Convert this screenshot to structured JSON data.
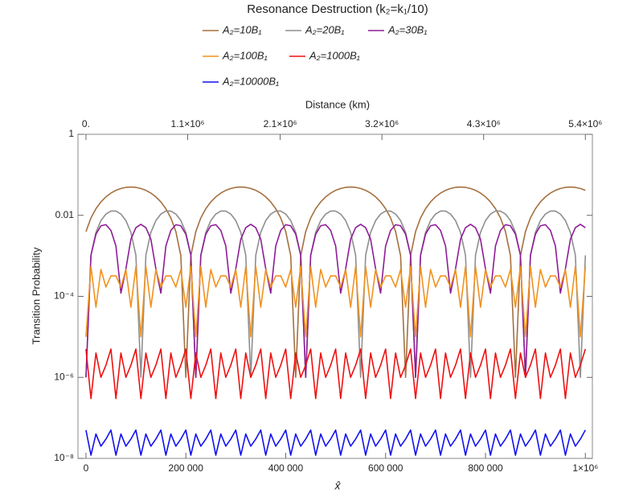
{
  "chart_data": {
    "type": "line",
    "title": "Resonance Destruction (k₂=k₁/10)",
    "xlabel": "x̂",
    "x2label": "Distance (km)",
    "ylabel": "Transition Probability",
    "xlim": [
      -16000,
      1014000
    ],
    "xticks": [
      0,
      {
        "value": 200000,
        "label": "200 000"
      },
      {
        "value": 400000,
        "label": "400 000"
      },
      {
        "value": 600000,
        "label": "600 000"
      },
      {
        "value": 800000,
        "label": "800 000"
      },
      {
        "value": 1000000,
        "label": "1×10⁶"
      }
    ],
    "x2lim": [
      -86400,
      5475600
    ],
    "x2ticks": [
      {
        "value": 0,
        "label": "0."
      },
      {
        "value": 1100000,
        "label": "1.1×10⁶"
      },
      {
        "value": 2100000,
        "label": "2.1×10⁶"
      },
      {
        "value": 3200000,
        "label": "3.2×10⁶"
      },
      {
        "value": 4300000,
        "label": "4.3×10⁶"
      },
      {
        "value": 5400000,
        "label": "5.4×10⁶"
      }
    ],
    "ylim": [
      1e-08,
      1
    ],
    "yscale": "log",
    "yticks": [
      {
        "value": 1e-08,
        "label": "10⁻⁸"
      },
      {
        "value": 1e-06,
        "label": "10⁻⁶"
      },
      {
        "value": 0.0001,
        "label": "10⁻⁴"
      },
      0.01,
      1
    ],
    "x": [
      0,
      10000,
      20000,
      30000,
      40000,
      50000,
      60000,
      70000,
      80000,
      90000,
      100000,
      110000,
      120000,
      130000,
      140000,
      150000,
      160000,
      170000,
      180000,
      190000,
      200000,
      210000,
      220000,
      230000,
      240000,
      250000,
      260000,
      270000,
      280000,
      290000,
      300000,
      310000,
      320000,
      330000,
      340000,
      350000,
      360000,
      370000,
      380000,
      390000,
      400000,
      410000,
      420000,
      430000,
      440000,
      450000,
      460000,
      470000,
      480000,
      490000,
      500000,
      510000,
      520000,
      530000,
      540000,
      550000,
      560000,
      570000,
      580000,
      590000,
      600000,
      610000,
      620000,
      630000,
      640000,
      650000,
      660000,
      670000,
      680000,
      690000,
      700000,
      710000,
      720000,
      730000,
      740000,
      750000,
      760000,
      770000,
      780000,
      790000,
      800000,
      810000,
      820000,
      830000,
      840000,
      850000,
      860000,
      870000,
      880000,
      890000,
      900000,
      910000,
      920000,
      930000,
      940000,
      950000,
      960000,
      970000,
      980000,
      990000,
      1000000
    ],
    "series": [
      {
        "name": "A₂=10B₁",
        "color": "#a5703f",
        "values": [
          0.00397,
          0.00863,
          0.0146,
          0.0214,
          0.0286,
          0.0354,
          0.0414,
          0.046,
          0.049,
          0.05,
          0.049,
          0.046,
          0.0414,
          0.0354,
          0.0286,
          0.0214,
          0.0146,
          0.00863,
          0.00397,
          0.00101,
          1e-06,
          0.00101,
          0.00397,
          0.00863,
          0.0146,
          0.0214,
          0.0286,
          0.0354,
          0.0414,
          0.046,
          0.049,
          0.05,
          0.049,
          0.046,
          0.0414,
          0.0354,
          0.0286,
          0.0214,
          0.0146,
          0.00863,
          0.00397,
          0.00101,
          1e-06,
          0.00101,
          0.00397,
          0.00863,
          0.0146,
          0.0214,
          0.0286,
          0.0354,
          0.0414,
          0.046,
          0.049,
          0.05,
          0.049,
          0.046,
          0.0414,
          0.0354,
          0.0286,
          0.0214,
          0.0146,
          0.00863,
          0.00397,
          0.00101,
          1e-06,
          0.00101,
          0.00397,
          0.00863,
          0.0146,
          0.0214,
          0.0286,
          0.0354,
          0.0414,
          0.046,
          0.049,
          0.05,
          0.049,
          0.046,
          0.0414,
          0.0354,
          0.0286,
          0.0214,
          0.0146,
          0.00863,
          0.00397,
          0.00101,
          1e-06,
          0.00101,
          0.00397,
          0.00863,
          0.0146,
          0.0214,
          0.0286,
          0.0354,
          0.0414,
          0.046,
          0.049,
          0.05,
          0.049,
          0.046,
          0.0414
        ]
      },
      {
        "name": "A₂=20B₁",
        "color": "#8f8f8f",
        "values": [
          1e-06,
          0.00103,
          0.0038,
          0.00742,
          0.01076,
          0.01274,
          0.01274,
          0.01076,
          0.00742,
          0.0038,
          0.00103,
          1e-06,
          0.00103,
          0.0038,
          0.00742,
          0.01076,
          0.01274,
          0.01274,
          0.01076,
          0.00742,
          0.0038,
          0.00103,
          1e-06,
          0.00103,
          0.0038,
          0.00742,
          0.01076,
          0.01274,
          0.01274,
          0.01076,
          0.00742,
          0.0038,
          0.00103,
          1e-06,
          0.00103,
          0.0038,
          0.00742,
          0.01076,
          0.01274,
          0.01274,
          0.01076,
          0.00742,
          0.0038,
          0.00103,
          1e-06,
          0.00103,
          0.0038,
          0.00742,
          0.01076,
          0.01274,
          0.01274,
          0.01076,
          0.00742,
          0.0038,
          0.00103,
          1e-06,
          0.00103,
          0.0038,
          0.00742,
          0.01076,
          0.01274,
          0.01274,
          0.01076,
          0.00742,
          0.0038,
          0.00103,
          1e-06,
          0.00103,
          0.0038,
          0.00742,
          0.01076,
          0.01274,
          0.01274,
          0.01076,
          0.00742,
          0.0038,
          0.00103,
          1e-06,
          0.00103,
          0.0038,
          0.00742,
          0.01076,
          0.01274,
          0.01274,
          0.01076,
          0.00742,
          0.0038,
          0.00103,
          1e-06,
          0.00103,
          0.0038,
          0.00742,
          0.01076,
          0.01274,
          0.01274,
          0.01076,
          0.00742,
          0.0038,
          0.00103,
          1e-06,
          0.00103
        ]
      },
      {
        "name": "A₂=30B₁",
        "color": "#8e1d96",
        "values": [
          1e-06,
          0.00104,
          0.00343,
          0.00552,
          0.00588,
          0.00425,
          0.00175,
          0.00012,
          0.00048,
          0.00257,
          0.00496,
          0.006,
          0.00496,
          0.00257,
          0.00048,
          0.00012,
          0.00175,
          0.00425,
          0.00588,
          0.00552,
          0.00343,
          0.00104,
          1e-06,
          0.00104,
          0.00343,
          0.00552,
          0.00588,
          0.00425,
          0.00175,
          0.00012,
          0.00048,
          0.00257,
          0.00496,
          0.006,
          0.00496,
          0.00257,
          0.00048,
          0.00012,
          0.00175,
          0.00425,
          0.00588,
          0.00552,
          0.00343,
          0.00104,
          1e-06,
          0.00104,
          0.00343,
          0.00552,
          0.00588,
          0.00425,
          0.00175,
          0.00012,
          0.00048,
          0.00257,
          0.00496,
          0.006,
          0.00496,
          0.00257,
          0.00048,
          0.00012,
          0.00175,
          0.00425,
          0.00588,
          0.00552,
          0.00343,
          0.00104,
          1e-06,
          0.00104,
          0.00343,
          0.00552,
          0.00588,
          0.00425,
          0.00175,
          0.00012,
          0.00048,
          0.00257,
          0.00496,
          0.006,
          0.00496,
          0.00257,
          0.00048,
          0.00012,
          0.00175,
          0.00425,
          0.00588,
          0.00552,
          0.00343,
          0.00104,
          1e-06,
          0.00104,
          0.00343,
          0.00552,
          0.00588,
          0.00425,
          0.00175,
          0.00012,
          0.00048,
          0.00257,
          0.00496,
          0.006,
          0.00496
        ]
      },
      {
        "name": "A₂=100B₁",
        "color": "#f0921f",
        "values": [
          1e-05,
          0.00055,
          5.4e-05,
          0.00046,
          0.00017,
          0.00032,
          0.00032,
          0.00017,
          0.00046,
          5.4e-05,
          0.00055,
          1e-05,
          0.00055,
          5.4e-05,
          0.00046,
          0.00017,
          0.00032,
          0.00032,
          0.00017,
          0.00046,
          5.4e-05,
          0.00055,
          1e-05,
          0.00055,
          5.4e-05,
          0.00046,
          0.00017,
          0.00032,
          0.00032,
          0.00017,
          0.00046,
          5.4e-05,
          0.00055,
          1e-05,
          0.00055,
          5.4e-05,
          0.00046,
          0.00017,
          0.00032,
          0.00032,
          0.00017,
          0.00046,
          5.4e-05,
          0.00055,
          1e-05,
          0.00055,
          5.4e-05,
          0.00046,
          0.00017,
          0.00032,
          0.00032,
          0.00017,
          0.00046,
          5.4e-05,
          0.00055,
          1e-05,
          0.00055,
          5.4e-05,
          0.00046,
          0.00017,
          0.00032,
          0.00032,
          0.00017,
          0.00046,
          5.4e-05,
          0.00055,
          1e-05,
          0.00055,
          5.4e-05,
          0.00046,
          0.00017,
          0.00032,
          0.00032,
          0.00017,
          0.00046,
          5.4e-05,
          0.00055,
          1e-05,
          0.00055,
          5.4e-05,
          0.00046,
          0.00017,
          0.00032,
          0.00032,
          0.00017,
          0.00046,
          5.4e-05,
          0.00055,
          1e-05,
          0.00055,
          5.4e-05,
          0.00046,
          0.00017,
          0.00032,
          0.00032,
          0.00017,
          0.00046,
          5.4e-05,
          0.00055,
          1e-05,
          0.00055
        ]
      },
      {
        "name": "A₂=1000B₁",
        "color": "#ee1111",
        "values": [
          5e-06,
          3e-07,
          4e-06,
          1e-06,
          2e-06,
          5e-06,
          3e-07,
          4e-06,
          1e-06,
          2e-06,
          5e-06,
          3e-07,
          4e-06,
          1e-06,
          2e-06,
          5e-06,
          3e-07,
          4e-06,
          1e-06,
          2e-06,
          5e-06,
          3e-07,
          4e-06,
          1e-06,
          2e-06,
          5e-06,
          3e-07,
          4e-06,
          1e-06,
          2e-06,
          5e-06,
          3e-07,
          4e-06,
          1e-06,
          2e-06,
          5e-06,
          3e-07,
          4e-06,
          1e-06,
          2e-06,
          5e-06,
          3e-07,
          4e-06,
          1e-06,
          2e-06,
          5e-06,
          3e-07,
          4e-06,
          1e-06,
          2e-06,
          5e-06,
          3e-07,
          4e-06,
          1e-06,
          2e-06,
          5e-06,
          3e-07,
          4e-06,
          1e-06,
          2e-06,
          5e-06,
          3e-07,
          4e-06,
          1e-06,
          2e-06,
          5e-06,
          3e-07,
          4e-06,
          1e-06,
          2e-06,
          5e-06,
          3e-07,
          4e-06,
          1e-06,
          2e-06,
          5e-06,
          3e-07,
          4e-06,
          1e-06,
          2e-06,
          5e-06,
          3e-07,
          4e-06,
          1e-06,
          2e-06,
          5e-06,
          3e-07,
          4e-06,
          1e-06,
          2e-06,
          5e-06,
          3e-07,
          4e-06,
          1e-06,
          2e-06,
          5e-06,
          3e-07,
          4e-06,
          1e-06,
          2e-06,
          5e-06
        ]
      },
      {
        "name": "A₂=10000B₁",
        "color": "#1111ee",
        "values": [
          5e-08,
          1.2e-08,
          4e-08,
          2e-08,
          3e-08,
          5e-08,
          1.2e-08,
          4e-08,
          2e-08,
          3e-08,
          5e-08,
          1.2e-08,
          4e-08,
          2e-08,
          3e-08,
          5e-08,
          1.2e-08,
          4e-08,
          2e-08,
          3e-08,
          5e-08,
          1.2e-08,
          4e-08,
          2e-08,
          3e-08,
          5e-08,
          1.2e-08,
          4e-08,
          2e-08,
          3e-08,
          5e-08,
          1.2e-08,
          4e-08,
          2e-08,
          3e-08,
          5e-08,
          1.2e-08,
          4e-08,
          2e-08,
          3e-08,
          5e-08,
          1.2e-08,
          4e-08,
          2e-08,
          3e-08,
          5e-08,
          1.2e-08,
          4e-08,
          2e-08,
          3e-08,
          5e-08,
          1.2e-08,
          4e-08,
          2e-08,
          3e-08,
          5e-08,
          1.2e-08,
          4e-08,
          2e-08,
          3e-08,
          5e-08,
          1.2e-08,
          4e-08,
          2e-08,
          3e-08,
          5e-08,
          1.2e-08,
          4e-08,
          2e-08,
          3e-08,
          5e-08,
          1.2e-08,
          4e-08,
          2e-08,
          3e-08,
          5e-08,
          1.2e-08,
          4e-08,
          2e-08,
          3e-08,
          5e-08,
          1.2e-08,
          4e-08,
          2e-08,
          3e-08,
          5e-08,
          1.2e-08,
          4e-08,
          2e-08,
          3e-08,
          5e-08,
          1.2e-08,
          4e-08,
          2e-08,
          3e-08,
          5e-08,
          1.2e-08,
          4e-08,
          2e-08,
          3e-08,
          5e-08
        ]
      }
    ]
  }
}
